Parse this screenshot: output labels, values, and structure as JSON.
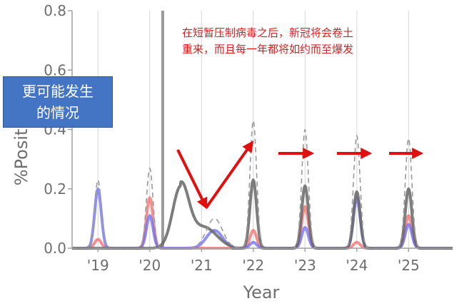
{
  "chart_data": {
    "type": "line",
    "xlabel": "Year",
    "ylabel": "%Positive ILI",
    "ylim": [
      0,
      0.8
    ],
    "xlim": [
      2018.5,
      2025.85
    ],
    "yticks": [
      "0.0",
      "0.2",
      "0.4",
      "0.6",
      "0.8"
    ],
    "xticks": [
      {
        "x": 2019,
        "label": "'19"
      },
      {
        "x": 2020,
        "label": "'20"
      },
      {
        "x": 2021,
        "label": "'21"
      },
      {
        "x": 2022,
        "label": "'22"
      },
      {
        "x": 2023,
        "label": "'23"
      },
      {
        "x": 2024,
        "label": "'24"
      },
      {
        "x": 2025,
        "label": "'25"
      }
    ],
    "grid": "vertical",
    "intervention_line_x": 2020.25,
    "series": [
      {
        "color": "#9a9a9a",
        "style": "dashed",
        "peaks": [
          [
            2019.0,
            0.23
          ],
          [
            2020.0,
            0.27
          ],
          [
            2021.25,
            0.1
          ],
          [
            2022.0,
            0.43
          ],
          [
            2023.0,
            0.4
          ],
          [
            2024.0,
            0.38
          ],
          [
            2025.0,
            0.37
          ]
        ]
      },
      {
        "color": "#666666",
        "style": "solid",
        "peaks": [
          [
            2020.6,
            0.21
          ],
          [
            2022.0,
            0.23
          ],
          [
            2023.0,
            0.21
          ],
          [
            2024.0,
            0.19
          ],
          [
            2025.0,
            0.2
          ]
        ]
      },
      {
        "color": "#ef6b6b",
        "style": "solid",
        "peaks": [
          [
            2019.0,
            0.03
          ],
          [
            2020.0,
            0.17
          ],
          [
            2022.0,
            0.06
          ],
          [
            2023.0,
            0.14
          ],
          [
            2024.0,
            0.02
          ],
          [
            2025.0,
            0.11
          ]
        ]
      },
      {
        "color": "#6c6cf0",
        "style": "solid",
        "peaks": [
          [
            2019.0,
            0.2
          ],
          [
            2020.0,
            0.11
          ],
          [
            2021.25,
            0.06
          ],
          [
            2022.0,
            0.02
          ],
          [
            2023.0,
            0.07
          ],
          [
            2024.0,
            0.17
          ],
          [
            2025.0,
            0.08
          ]
        ]
      }
    ]
  },
  "annotation": {
    "line1": "在短暂压制病毒之后，新冠将会卷土",
    "line2": "重来，而且每一年都将如约而至爆发"
  },
  "callout": {
    "line1": "更可能发生",
    "line2": "的情况"
  },
  "colors": {
    "arrow": "#e01010",
    "callout_bg": "#4474c4",
    "intervention_line": "#9a9a9a"
  }
}
